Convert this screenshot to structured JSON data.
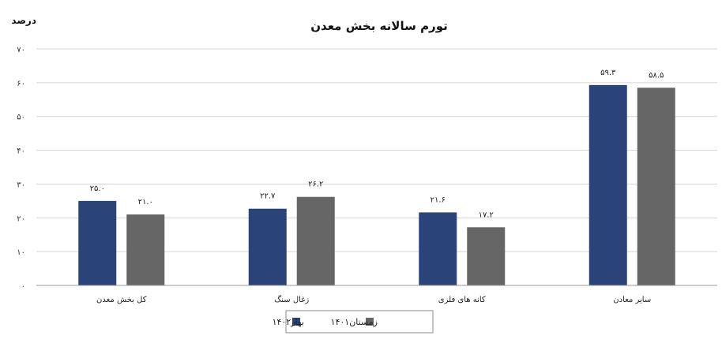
{
  "chart_data": {
    "type": "bar",
    "title": "تورم سالانه بخش معدن",
    "ylabel": "درصد",
    "ylim": [
      0,
      70
    ],
    "yticks": [
      "۰",
      "۱۰",
      "۲۰",
      "۳۰",
      "۴۰",
      "۵۰",
      "۶۰",
      "۷۰"
    ],
    "grid": true,
    "legend_position": "bottom",
    "categories": [
      "کل بخش معدن",
      "زغال سنگ",
      "کانه های فلزی",
      "سایر معادن"
    ],
    "series": [
      {
        "name": "بهار۱۴۰۲",
        "color": "#2a4378",
        "values": [
          25.0,
          22.7,
          21.6,
          59.3
        ],
        "labels": [
          "۲۵.۰",
          "۲۲.۷",
          "۲۱.۶",
          "۵۹.۳"
        ]
      },
      {
        "name": "زمستان۱۴۰۱",
        "color": "#666666",
        "values": [
          21.0,
          26.2,
          17.2,
          58.5
        ],
        "labels": [
          "۲۱.۰",
          "۲۶.۲",
          "۱۷.۲",
          "۵۸.۵"
        ]
      }
    ]
  }
}
